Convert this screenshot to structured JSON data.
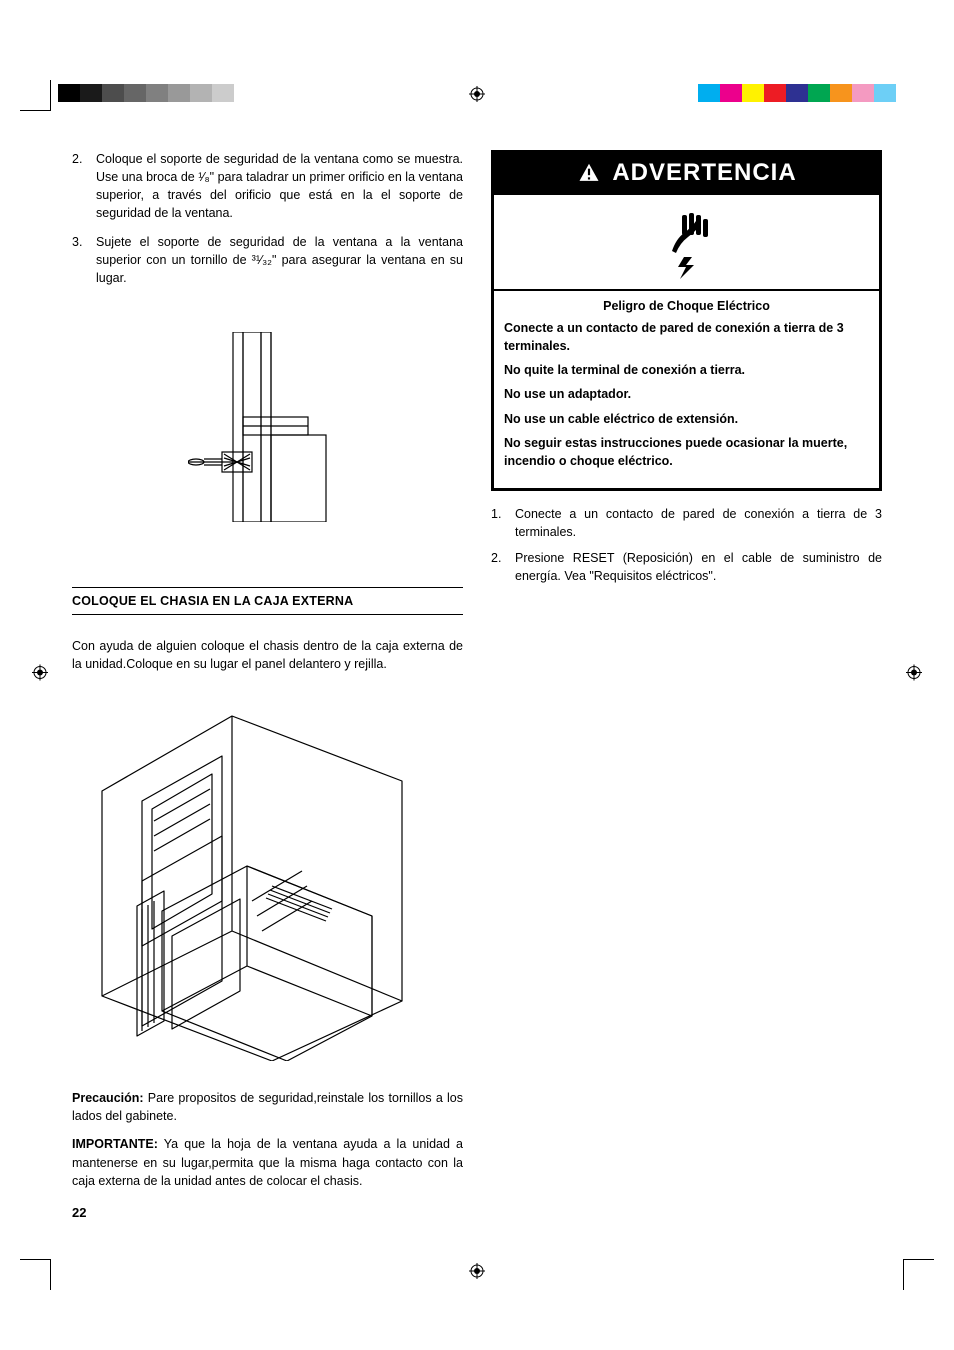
{
  "page": {
    "number": "22"
  },
  "swatches": {
    "left": [
      "#000000",
      "#1a1a1a",
      "#4d4d4d",
      "#666666",
      "#808080",
      "#999999",
      "#b3b3b3",
      "#cccccc",
      "#ffffff"
    ],
    "right": [
      "#00aeef",
      "#ec008c",
      "#fff200",
      "#ed1c24",
      "#2e3192",
      "#00a651",
      "#f7941d",
      "#f49ac1",
      "#6dcff6"
    ]
  },
  "left_col": {
    "step2": "Coloque el soporte de seguridad de la ventana como se muestra. Use una broca de ¹⁄₈\" para taladrar un primer orificio en la ventana superior, a través del orificio que está en la el soporte de seguridad de la ventana.",
    "step3": "Sujete el soporte de seguridad de la ventana a la ventana superior con un tornillo de ³¹⁄₃₂\" para asegurar la ventana en su lugar.",
    "section_title": "COLOQUE EL CHASIA EN LA CAJA EXTERNA",
    "para1": "Con ayuda de alguien coloque el chasis dentro de la caja externa de la unidad.Coloque en su lugar el panel delantero y rejilla.",
    "precaucion_label": "Precaución:",
    "precaucion_text": " Pare propositos de seguridad,reinstale los tornillos a los lados del gabinete.",
    "importante_label": "IMPORTANTE:",
    "importante_text": " Ya que la hoja de la ventana ayuda a la unidad a mantenerse en su lugar,permita que la misma haga contacto con la caja externa de la unidad antes de colocar el chasis."
  },
  "warning": {
    "title": "ADVERTENCIA",
    "subtitle": "Peligro de Choque Eléctrico",
    "lines": [
      "Conecte a un contacto de pared de conexión a tierra de 3 terminales.",
      "No quite la terminal de conexión a tierra.",
      "No use un adaptador.",
      "No use un cable eléctrico de extensión.",
      "No seguir estas instrucciones puede ocasionar la muerte, incendio o choque eléctrico."
    ],
    "after1": "Conecte a un contacto de pared de conexión a tierra de 3 terminales.",
    "after2": "Presione RESET (Reposición) en el cable de suministro de energía. Vea \"Requisitos eléctricos\"."
  }
}
